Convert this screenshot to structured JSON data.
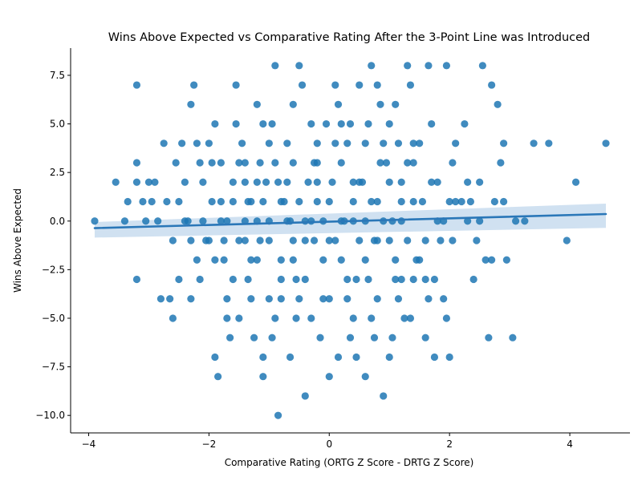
{
  "chart_data": {
    "type": "scatter",
    "title": "Wins Above Expected vs Comparative Rating After the 3-Point Line was Introduced",
    "xlabel": "Comparative Rating (ORTG Z Score - DRTG Z Score)",
    "ylabel": "Wins Above Expected",
    "xlim": [
      -4.3,
      5.0
    ],
    "ylim": [
      -10.9,
      8.9
    ],
    "x_ticks": [
      -4,
      -2,
      0,
      2,
      4
    ],
    "x_tick_labels": [
      "−4",
      "−2",
      "0",
      "2",
      "4"
    ],
    "y_ticks": [
      -10.0,
      -7.5,
      -5.0,
      -2.5,
      0.0,
      2.5,
      5.0,
      7.5
    ],
    "y_tick_labels": [
      "−10.0",
      "−7.5",
      "−5.0",
      "−2.5",
      "0.0",
      "2.5",
      "5.0",
      "7.5"
    ],
    "grid": false,
    "point_color": "#1f77b4",
    "regression": {
      "x_range": [
        -3.9,
        4.6
      ],
      "intercept": -0.03,
      "slope": 0.085,
      "ci_low": [
        -0.85,
        -0.35
      ],
      "ci_high": [
        -0.05,
        0.9
      ],
      "color": "#2a77b8",
      "band_color": "#c8dcee"
    },
    "series": [
      {
        "points": [
          [
            -3.9,
            0
          ],
          [
            -3.55,
            2
          ],
          [
            -3.4,
            0
          ],
          [
            -3.35,
            1
          ],
          [
            -3.2,
            3
          ],
          [
            -3.2,
            2
          ],
          [
            -3.2,
            7
          ],
          [
            -3.2,
            -3
          ],
          [
            -3.1,
            1
          ],
          [
            -3.05,
            0
          ],
          [
            -3.0,
            2
          ],
          [
            -2.9,
            2
          ],
          [
            -2.95,
            1
          ],
          [
            -2.85,
            0
          ],
          [
            -2.8,
            -4
          ],
          [
            -2.75,
            4
          ],
          [
            -2.7,
            1
          ],
          [
            -2.65,
            -4
          ],
          [
            -2.6,
            -5
          ],
          [
            -2.55,
            3
          ],
          [
            -2.5,
            -3
          ],
          [
            -2.45,
            4
          ],
          [
            -2.4,
            0
          ],
          [
            -2.4,
            2
          ],
          [
            -2.3,
            6
          ],
          [
            -2.3,
            -4
          ],
          [
            -2.25,
            7
          ],
          [
            -2.2,
            4
          ],
          [
            -2.15,
            3
          ],
          [
            -2.1,
            0
          ],
          [
            -2.05,
            -1
          ],
          [
            -2.0,
            4
          ],
          [
            -1.95,
            1
          ],
          [
            -1.9,
            5
          ],
          [
            -1.9,
            -7
          ],
          [
            -1.85,
            -8
          ],
          [
            -1.8,
            3
          ],
          [
            -1.75,
            -2
          ],
          [
            -1.7,
            -4
          ],
          [
            -1.65,
            -6
          ],
          [
            -1.6,
            2
          ],
          [
            -1.55,
            7
          ],
          [
            -1.5,
            -5
          ],
          [
            -1.45,
            4
          ],
          [
            -1.4,
            0
          ],
          [
            -1.35,
            -3
          ],
          [
            -1.3,
            1
          ],
          [
            -1.2,
            6
          ],
          [
            -1.15,
            3
          ],
          [
            -1.1,
            -7
          ],
          [
            -1.1,
            -8
          ],
          [
            -1.05,
            2
          ],
          [
            -1.0,
            -4
          ],
          [
            -0.95,
            5
          ],
          [
            -0.9,
            8
          ],
          [
            -0.85,
            -10
          ],
          [
            -0.8,
            -2
          ],
          [
            -0.75,
            1
          ],
          [
            -0.7,
            4
          ],
          [
            -0.65,
            0
          ],
          [
            -0.6,
            6
          ],
          [
            -0.55,
            -3
          ],
          [
            -0.5,
            8
          ],
          [
            -0.45,
            7
          ],
          [
            -0.4,
            -9
          ],
          [
            -0.35,
            2
          ],
          [
            -0.3,
            -5
          ],
          [
            -0.25,
            -1
          ],
          [
            -0.2,
            3
          ],
          [
            -0.1,
            -4
          ],
          [
            -0.05,
            5
          ],
          [
            0.0,
            -8
          ],
          [
            0.1,
            7
          ],
          [
            0.15,
            6
          ],
          [
            0.2,
            -2
          ],
          [
            0.25,
            0
          ],
          [
            0.3,
            4
          ],
          [
            0.35,
            -6
          ],
          [
            0.4,
            1
          ],
          [
            0.45,
            -3
          ],
          [
            0.5,
            7
          ],
          [
            0.55,
            2
          ],
          [
            0.6,
            -8
          ],
          [
            0.65,
            5
          ],
          [
            0.7,
            8
          ],
          [
            0.75,
            -1
          ],
          [
            0.8,
            7
          ],
          [
            0.85,
            6
          ],
          [
            0.9,
            -9
          ],
          [
            0.95,
            3
          ],
          [
            1.0,
            -7
          ],
          [
            1.05,
            0
          ],
          [
            1.1,
            6
          ],
          [
            1.15,
            -4
          ],
          [
            1.2,
            2
          ],
          [
            1.25,
            -5
          ],
          [
            1.3,
            8
          ],
          [
            1.35,
            7
          ],
          [
            1.4,
            -3
          ],
          [
            1.5,
            4
          ],
          [
            1.55,
            1
          ],
          [
            1.6,
            -6
          ],
          [
            1.65,
            8
          ],
          [
            1.7,
            5
          ],
          [
            1.75,
            -7
          ],
          [
            1.8,
            2
          ],
          [
            1.85,
            -1
          ],
          [
            1.9,
            0
          ],
          [
            1.95,
            8
          ],
          [
            2.0,
            -7
          ],
          [
            2.05,
            3
          ],
          [
            2.1,
            4
          ],
          [
            2.2,
            1
          ],
          [
            2.25,
            5
          ],
          [
            2.3,
            2
          ],
          [
            2.4,
            -3
          ],
          [
            2.45,
            -1
          ],
          [
            2.5,
            0
          ],
          [
            2.55,
            8
          ],
          [
            2.6,
            -2
          ],
          [
            2.65,
            -6
          ],
          [
            2.7,
            7
          ],
          [
            2.75,
            1
          ],
          [
            2.8,
            6
          ],
          [
            2.85,
            3
          ],
          [
            2.9,
            4
          ],
          [
            2.95,
            -2
          ],
          [
            3.05,
            -6
          ],
          [
            3.1,
            0
          ],
          [
            3.25,
            0
          ],
          [
            3.4,
            4
          ],
          [
            3.65,
            4
          ],
          [
            3.95,
            -1
          ],
          [
            4.1,
            2
          ],
          [
            4.6,
            4
          ],
          [
            -1.5,
            -1
          ],
          [
            -1.4,
            2
          ],
          [
            -1.3,
            -2
          ],
          [
            -1.2,
            0
          ],
          [
            -1.1,
            1
          ],
          [
            -1.0,
            -1
          ],
          [
            -0.9,
            3
          ],
          [
            -0.8,
            -3
          ],
          [
            -0.7,
            2
          ],
          [
            -0.6,
            -2
          ],
          [
            -0.5,
            1
          ],
          [
            -0.4,
            -1
          ],
          [
            -0.3,
            0
          ],
          [
            -0.2,
            2
          ],
          [
            -0.1,
            -2
          ],
          [
            0.0,
            1
          ],
          [
            0.1,
            -1
          ],
          [
            0.2,
            3
          ],
          [
            0.3,
            -3
          ],
          [
            0.4,
            0
          ],
          [
            0.5,
            2
          ],
          [
            0.6,
            -2
          ],
          [
            0.7,
            1
          ],
          [
            0.8,
            -1
          ],
          [
            0.9,
            0
          ],
          [
            1.0,
            2
          ],
          [
            1.1,
            -2
          ],
          [
            1.2,
            1
          ],
          [
            1.3,
            -1
          ],
          [
            1.4,
            3
          ],
          [
            -1.8,
            0
          ],
          [
            -1.6,
            1
          ],
          [
            -1.4,
            -1
          ],
          [
            -1.2,
            2
          ],
          [
            -1.0,
            0
          ],
          [
            -0.8,
            1
          ],
          [
            -0.6,
            -1
          ],
          [
            -0.4,
            0
          ],
          [
            -0.2,
            1
          ],
          [
            0.0,
            -1
          ],
          [
            0.2,
            0
          ],
          [
            0.4,
            2
          ],
          [
            0.6,
            0
          ],
          [
            0.8,
            1
          ],
          [
            1.0,
            -1
          ],
          [
            1.2,
            0
          ],
          [
            1.4,
            1
          ],
          [
            1.6,
            -1
          ],
          [
            1.8,
            0
          ],
          [
            2.0,
            1
          ],
          [
            -2.2,
            -2
          ],
          [
            -2.0,
            -1
          ],
          [
            -1.8,
            1
          ],
          [
            -1.6,
            -3
          ],
          [
            -1.4,
            3
          ],
          [
            -1.2,
            -2
          ],
          [
            -1.0,
            4
          ],
          [
            -0.8,
            -4
          ],
          [
            -0.6,
            3
          ],
          [
            -0.4,
            -3
          ],
          [
            -0.2,
            4
          ],
          [
            0.0,
            -4
          ],
          [
            0.2,
            5
          ],
          [
            0.4,
            -5
          ],
          [
            0.6,
            4
          ],
          [
            0.8,
            -4
          ],
          [
            1.0,
            5
          ],
          [
            1.2,
            -3
          ],
          [
            1.4,
            4
          ],
          [
            1.6,
            -3
          ],
          [
            -2.5,
            1
          ],
          [
            -2.3,
            -1
          ],
          [
            -2.1,
            2
          ],
          [
            -1.9,
            -2
          ],
          [
            -1.7,
            0
          ],
          [
            -1.5,
            3
          ],
          [
            -1.3,
            -4
          ],
          [
            -1.1,
            5
          ],
          [
            -0.9,
            -5
          ],
          [
            -0.7,
            0
          ],
          [
            -0.5,
            -4
          ],
          [
            -0.3,
            5
          ],
          [
            -0.1,
            0
          ],
          [
            0.1,
            4
          ],
          [
            0.3,
            -4
          ],
          [
            0.5,
            -1
          ],
          [
            0.7,
            -5
          ],
          [
            0.9,
            4
          ],
          [
            1.1,
            -3
          ],
          [
            1.3,
            3
          ],
          [
            1.5,
            -2
          ],
          [
            1.7,
            2
          ],
          [
            1.9,
            -4
          ],
          [
            2.1,
            1
          ],
          [
            2.3,
            0
          ],
          [
            2.5,
            2
          ],
          [
            2.7,
            -2
          ],
          [
            2.9,
            1
          ],
          [
            -1.7,
            -5
          ],
          [
            -1.25,
            -6
          ],
          [
            -0.95,
            -6
          ],
          [
            -0.65,
            -7
          ],
          [
            -0.15,
            -6
          ],
          [
            0.15,
            -7
          ],
          [
            0.45,
            -7
          ],
          [
            0.75,
            -6
          ],
          [
            1.05,
            -6
          ],
          [
            1.35,
            -5
          ],
          [
            1.65,
            -4
          ],
          [
            1.95,
            -5
          ],
          [
            -2.6,
            -1
          ],
          [
            -2.35,
            0
          ],
          [
            -2.15,
            -3
          ],
          [
            -1.95,
            3
          ],
          [
            -1.75,
            -1
          ],
          [
            -1.55,
            5
          ],
          [
            -1.35,
            1
          ],
          [
            -1.15,
            -1
          ],
          [
            -0.85,
            2
          ],
          [
            -0.55,
            -5
          ],
          [
            -0.25,
            3
          ],
          [
            0.05,
            2
          ],
          [
            0.35,
            5
          ],
          [
            0.65,
            -3
          ],
          [
            0.85,
            3
          ],
          [
            1.15,
            4
          ],
          [
            1.45,
            -2
          ],
          [
            1.75,
            -3
          ],
          [
            2.05,
            -1
          ],
          [
            2.35,
            1
          ]
        ]
      }
    ]
  }
}
